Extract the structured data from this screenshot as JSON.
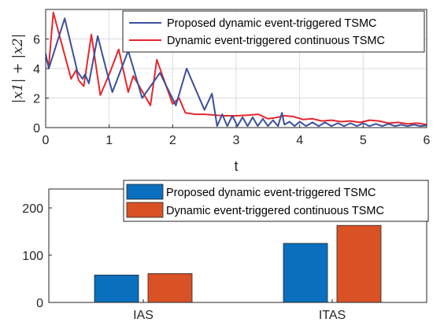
{
  "chart_data": [
    {
      "type": "line",
      "xlabel": "t",
      "ylabel": "|x1| + |x2|",
      "xlim": [
        0,
        6
      ],
      "ylim": [
        0,
        8
      ],
      "xticks": [
        "0",
        "1",
        "2",
        "3",
        "4",
        "5",
        "6"
      ],
      "yticks": [
        "0",
        "2",
        "4",
        "6"
      ],
      "grid": true,
      "legend": "top-right",
      "series": [
        {
          "name": "Proposed dynamic event-triggered TSMC",
          "color": "#3b4f9c",
          "x": [
            0,
            0.05,
            0.3,
            0.5,
            0.58,
            0.62,
            0.68,
            0.82,
            0.95,
            1.05,
            1.3,
            1.52,
            1.8,
            2.05,
            2.22,
            2.5,
            2.62,
            2.7,
            2.78,
            2.86,
            2.94,
            3.02,
            3.1,
            3.18,
            3.26,
            3.34,
            3.42,
            3.5,
            3.58,
            3.66,
            3.72,
            3.76,
            3.84,
            3.92,
            4.0,
            4.1,
            4.2,
            4.3,
            4.4,
            4.5,
            4.6,
            4.7,
            4.8,
            4.9,
            5.0,
            5.1,
            5.2,
            5.3,
            5.4,
            5.5,
            5.6,
            5.7,
            5.8,
            5.9,
            6.0
          ],
          "y": [
            5.0,
            4.0,
            7.4,
            3.8,
            3.3,
            3.6,
            3.0,
            6.2,
            4.0,
            2.4,
            5.2,
            2.0,
            3.7,
            1.5,
            4.0,
            1.2,
            2.3,
            0.1,
            0.9,
            0.1,
            0.8,
            0.1,
            0.7,
            0.1,
            0.7,
            0.1,
            0.6,
            0.1,
            0.5,
            0.1,
            1.0,
            0.2,
            0.4,
            0.1,
            0.4,
            0.1,
            0.35,
            0.1,
            0.35,
            0.1,
            0.3,
            0.1,
            0.3,
            0.1,
            0.3,
            0.1,
            0.25,
            0.1,
            0.25,
            0.1,
            0.2,
            0.1,
            0.2,
            0.1,
            0.15
          ]
        },
        {
          "name": "Dynamic event-triggered continuous TSMC",
          "color": "#e8262e",
          "x": [
            0,
            0.05,
            0.12,
            0.4,
            0.48,
            0.52,
            0.6,
            0.72,
            0.86,
            1.0,
            1.15,
            1.3,
            1.38,
            1.65,
            1.75,
            2.0,
            2.1,
            2.2,
            2.35,
            2.5,
            2.8,
            3.0,
            3.2,
            3.35,
            3.5,
            3.6,
            3.75,
            3.9,
            4.05,
            4.2,
            4.35,
            4.5,
            4.65,
            4.8,
            4.95,
            5.1,
            5.25,
            5.4,
            5.55,
            5.7,
            5.85,
            6.0
          ],
          "y": [
            4.7,
            4.2,
            7.8,
            3.3,
            3.9,
            3.2,
            2.8,
            6.3,
            2.2,
            3.6,
            5.3,
            2.4,
            3.5,
            1.5,
            4.6,
            1.6,
            2.0,
            1.0,
            0.9,
            0.9,
            0.8,
            0.8,
            0.85,
            0.9,
            0.6,
            0.65,
            0.8,
            0.75,
            0.55,
            0.6,
            0.45,
            0.5,
            0.4,
            0.45,
            0.35,
            0.5,
            0.45,
            0.3,
            0.35,
            0.25,
            0.3,
            0.2
          ]
        }
      ]
    },
    {
      "type": "bar",
      "categories": [
        "IAS",
        "ITAS"
      ],
      "ylim": [
        0,
        240
      ],
      "yticks": [
        "0",
        "100",
        "200"
      ],
      "legend": "top-right",
      "series": [
        {
          "name": "Proposed dynamic event-triggered TSMC",
          "color": "#0a6fbe",
          "values": [
            58,
            125
          ]
        },
        {
          "name": "Dynamic event-triggered continuous TSMC",
          "color": "#d95226",
          "values": [
            61,
            163
          ]
        }
      ]
    }
  ]
}
